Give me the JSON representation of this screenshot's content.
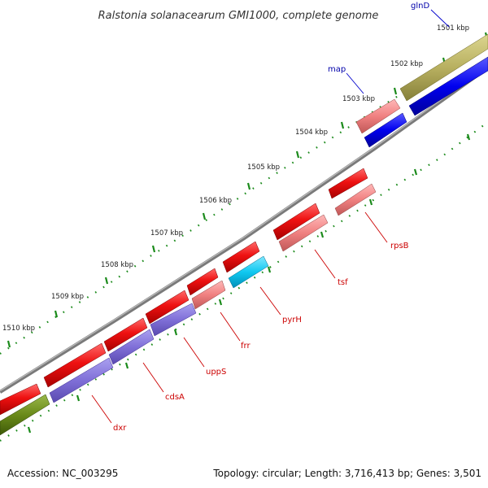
{
  "title": "Ralstonia solanacearum GMI1000, complete genome",
  "footer": {
    "accession": "Accession: NC_003295",
    "summary": "Topology: circular; Length: 3,716,413 bp; Genes: 3,501"
  },
  "ticks": [
    "1501 kbp",
    "1502 kbp",
    "1503 kbp",
    "1504 kbp",
    "1505 kbp",
    "1506 kbp",
    "1507 kbp",
    "1508 kbp",
    "1509 kbp",
    "1510 kbp"
  ],
  "gene_labels": {
    "glnD": "glnD",
    "map": "map",
    "rpsB": "rpsB",
    "tsf": "tsf",
    "pyrH": "pyrH",
    "frr": "frr",
    "uppS": "uppS",
    "cdsA": "cdsA",
    "dxr": "dxr"
  },
  "colors": {
    "cds_forward": "#ee1111",
    "cds_reverse_light": "#f08080",
    "gene_blue": "#0000ee",
    "gene_olive": "#b8b060",
    "gene_olive_dark": "#6a8a1a",
    "gene_purple": "#8070d8",
    "gene_cyan": "#10c8f0",
    "backbone": "#808080",
    "dots": "#1a8a1a",
    "label_red": "#cc0000",
    "label_blue": "#0000aa"
  }
}
